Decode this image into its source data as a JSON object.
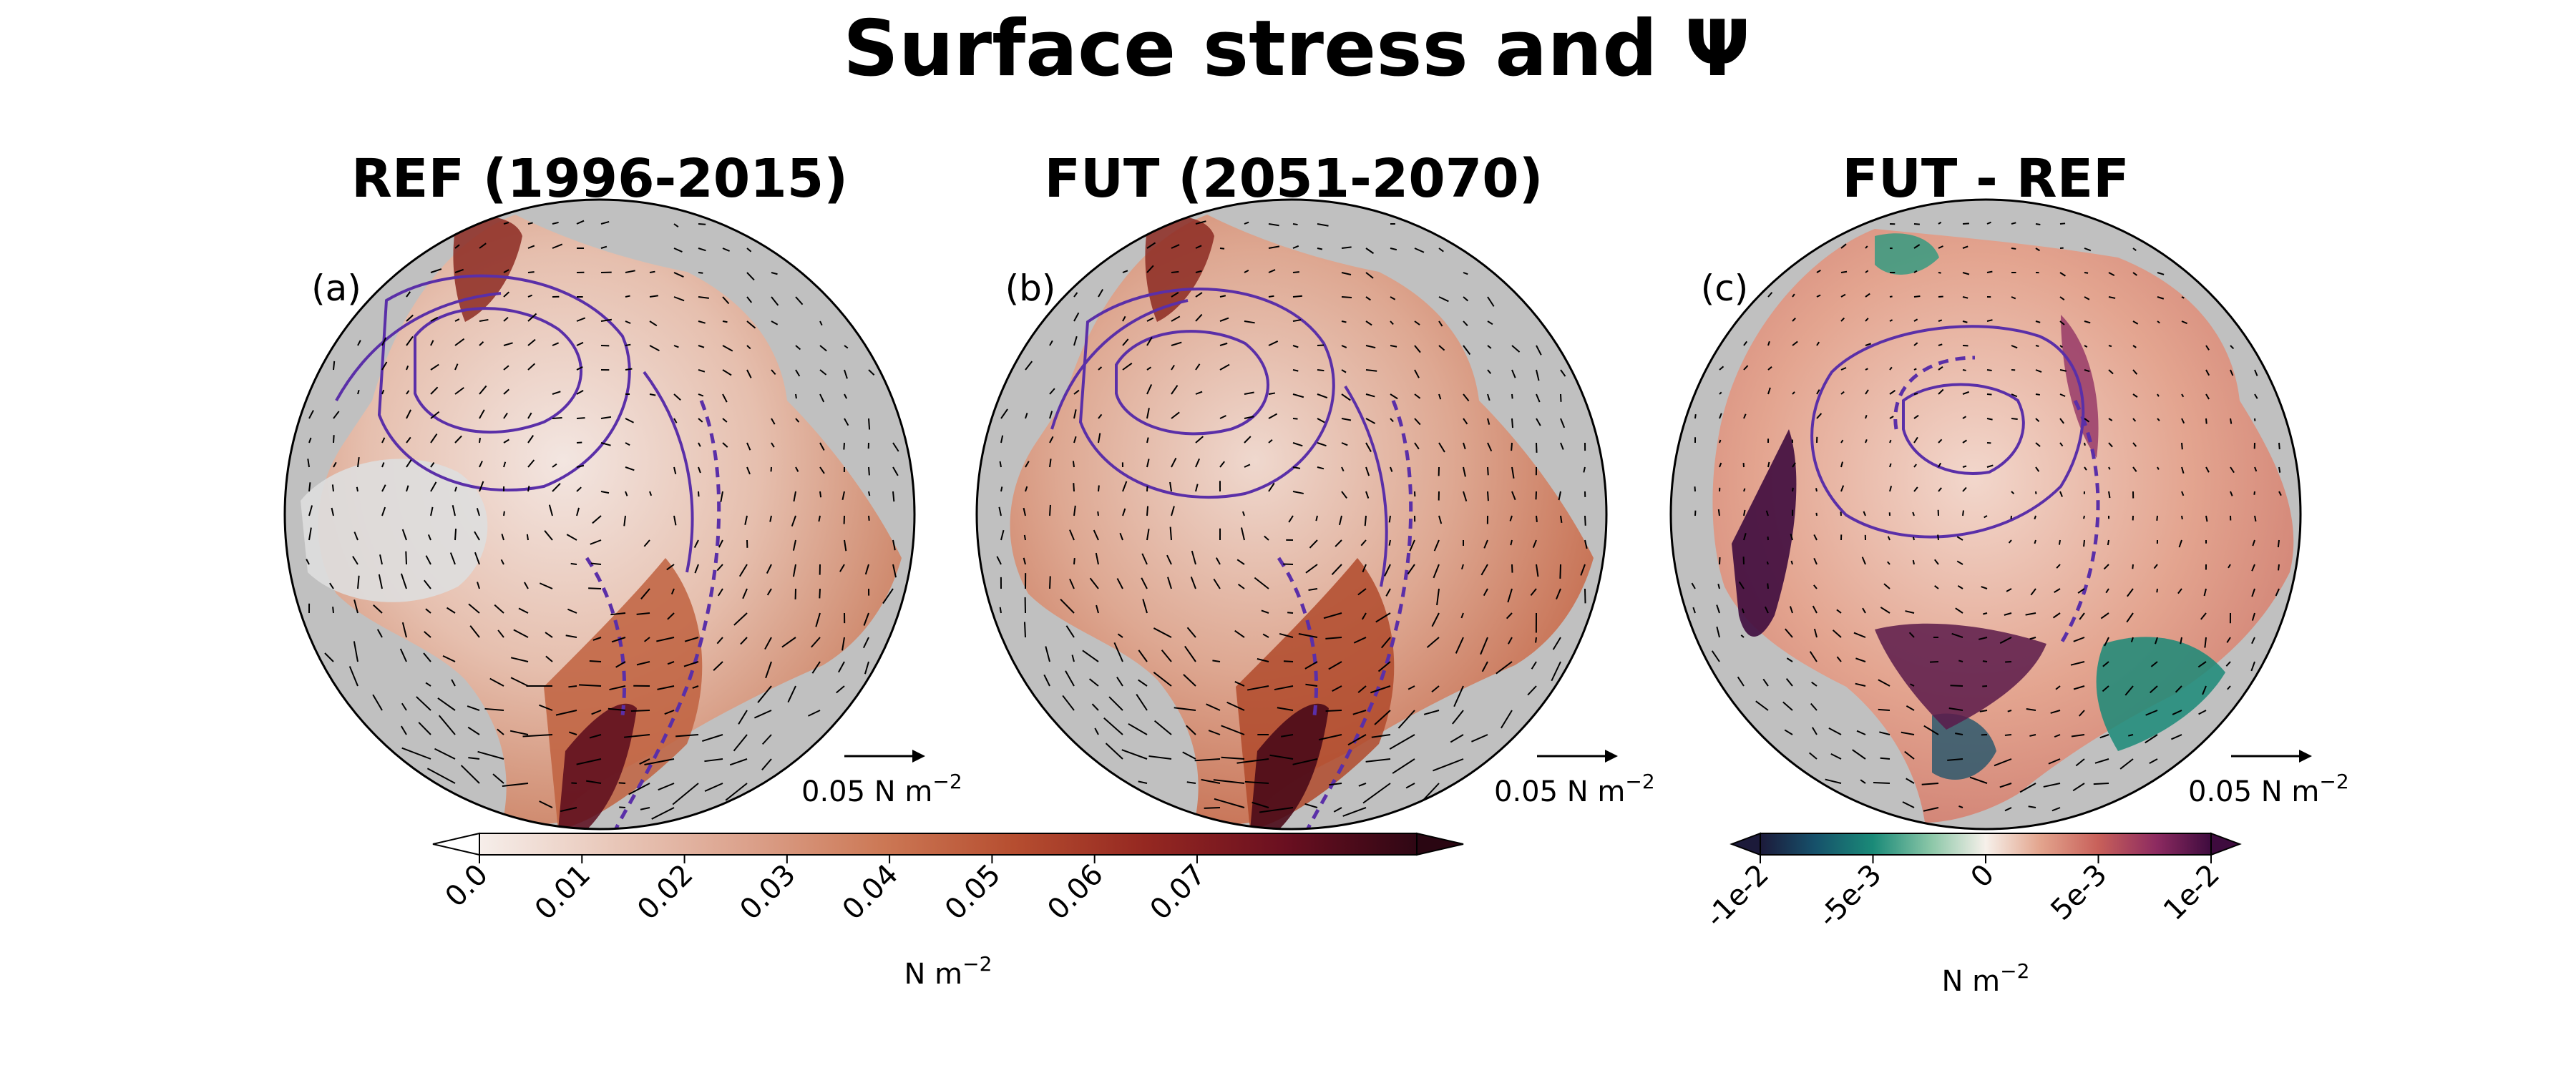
{
  "figure": {
    "title": "Surface stress and Ψ"
  },
  "panels": [
    {
      "id": "a",
      "title": "REF (1996-2015)",
      "letter": "(a)",
      "quiver_key": "0.05 N m",
      "quiver_key_sup": "−2"
    },
    {
      "id": "b",
      "title": "FUT (2051-2070)",
      "letter": "(b)",
      "quiver_key": "0.05 N m",
      "quiver_key_sup": "−2"
    },
    {
      "id": "c",
      "title": "FUT - REF",
      "letter": "(c)",
      "quiver_key": "0.05 N m",
      "quiver_key_sup": "−2"
    }
  ],
  "colorbars": {
    "magnitude": {
      "ticks": [
        "0.0",
        "0.01",
        "0.02",
        "0.03",
        "0.04",
        "0.05",
        "0.06",
        "0.07"
      ],
      "values": [
        0.0,
        0.01,
        0.02,
        0.03,
        0.04,
        0.05,
        0.06,
        0.07
      ],
      "range": [
        0.0,
        0.08
      ],
      "extend": "both",
      "colormap": [
        "#f6eeea",
        "#e4b8a8",
        "#cf8464",
        "#b9502f",
        "#9a2a20",
        "#73101f",
        "#4a0a1a",
        "#2a0612"
      ],
      "unit": "N m",
      "unit_sup": "−2"
    },
    "difference": {
      "ticks": [
        "-1e-2",
        "-5e-3",
        "0",
        "5e-3",
        "1e-2"
      ],
      "values": [
        -0.01,
        -0.005,
        0,
        0.005,
        0.01
      ],
      "range": [
        -0.01,
        0.01
      ],
      "extend": "both",
      "colormap": [
        "#1c1a3a",
        "#16506a",
        "#1a8a78",
        "#8cc7a8",
        "#f6f0ea",
        "#e3a58e",
        "#c8605a",
        "#8c2a60",
        "#3e0b3e"
      ],
      "unit": "N m",
      "unit_sup": "−2"
    }
  },
  "colors": {
    "land": "#c0c0c0",
    "contour": "#5a2fa8",
    "contour_highlight": "#ffffff",
    "arrow": "#000000"
  },
  "contour_style": {
    "solid": "positive",
    "dashed": "negative"
  }
}
